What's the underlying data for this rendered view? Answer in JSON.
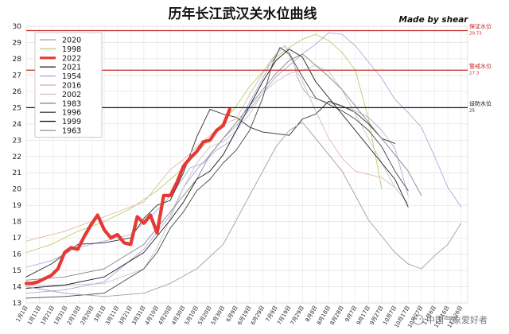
{
  "chart_data": {
    "type": "line",
    "title": "历年长江武汉关水位曲线",
    "credit": "Made  by shear",
    "watermark": "中国气象爱好者",
    "ylim": [
      13,
      30
    ],
    "yticks": [
      13,
      14,
      15,
      16,
      17,
      18,
      19,
      20,
      21,
      22,
      23,
      24,
      25,
      26,
      27,
      28,
      29,
      30
    ],
    "grid": true,
    "legend_position": "top-left",
    "x_tick_labels": [
      "1月1日",
      "1月11日",
      "1月21日",
      "1月31日",
      "2月10日",
      "2月20日",
      "3月1日",
      "3月11日",
      "3月21日",
      "3月31日",
      "4月10日",
      "4月20日",
      "4月30日",
      "5月10日",
      "5月20日",
      "5月30日",
      "6月9日",
      "6月19日",
      "6月29日",
      "7月9日",
      "7月19日",
      "7月29日",
      "8月8日",
      "8月18日",
      "8月28日",
      "9月7日",
      "9月17日",
      "9月27日",
      "10月7日",
      "10月17日",
      "10月27日",
      "11月6日",
      "11月16日",
      "11月26日"
    ],
    "x_tick_days": [
      1,
      11,
      21,
      31,
      41,
      51,
      60,
      70,
      80,
      90,
      100,
      110,
      120,
      130,
      140,
      150,
      160,
      170,
      180,
      190,
      200,
      210,
      220,
      230,
      240,
      250,
      260,
      270,
      280,
      290,
      300,
      310,
      320,
      330
    ],
    "reference_lines": [
      {
        "label": "保证水位",
        "value": 29.73,
        "value_label": "29.73",
        "color": "#c62828"
      },
      {
        "label": "警戒水位",
        "value": 27.3,
        "value_label": "27.3",
        "color": "#c62828"
      },
      {
        "label": "设防水位",
        "value": 25,
        "value_label": "25",
        "color": "#111111"
      }
    ],
    "series": [
      {
        "name": "2020",
        "color": "#9fb4d9",
        "width": 0.9,
        "x": [
          1,
          20,
          40,
          60,
          80,
          95,
          105,
          115,
          125,
          135,
          145,
          155,
          160,
          165,
          172,
          180,
          187,
          193,
          197,
          200,
          203,
          206,
          210,
          215,
          222,
          230,
          240,
          250,
          260,
          270,
          280,
          290
        ],
        "y": [
          15.2,
          15.6,
          16.4,
          16.8,
          17.2,
          18.3,
          19.1,
          20.1,
          21.3,
          21.6,
          22.4,
          22.9,
          23.6,
          24.6,
          25.6,
          26.8,
          27.9,
          28.6,
          28.8,
          28.4,
          27.9,
          26.9,
          26.2,
          25.7,
          25.5,
          25.3,
          25.1,
          24.8,
          24.4,
          23.6,
          22.5,
          19.6
        ]
      },
      {
        "name": "1998",
        "color": "#b7cf6e",
        "width": 0.9,
        "x": [
          1,
          20,
          40,
          60,
          80,
          100,
          120,
          140,
          150,
          160,
          170,
          180,
          190,
          200,
          210,
          220,
          230,
          240,
          250,
          260,
          270
        ],
        "y": [
          16.1,
          16.6,
          17.4,
          18.0,
          18.8,
          19.9,
          21.3,
          23.1,
          24.1,
          25.1,
          26.3,
          27.2,
          28.1,
          28.7,
          29.2,
          29.5,
          29.1,
          28.4,
          27.3,
          24.3,
          20.0
        ]
      },
      {
        "name": "2022",
        "color": "#e53935",
        "width": 4.2,
        "x": [
          1,
          5,
          10,
          15,
          20,
          25,
          30,
          35,
          40,
          45,
          50,
          55,
          60,
          65,
          70,
          75,
          80,
          85,
          90,
          95,
          100,
          105,
          110,
          115,
          120,
          125,
          130,
          135,
          140,
          145,
          150,
          155
        ],
        "y": [
          14.2,
          14.2,
          14.3,
          14.5,
          14.7,
          15.1,
          16.1,
          16.4,
          16.3,
          17.1,
          17.8,
          18.4,
          17.5,
          17.0,
          17.2,
          16.7,
          16.6,
          18.3,
          17.9,
          18.4,
          17.3,
          19.6,
          19.6,
          20.4,
          21.4,
          21.9,
          22.3,
          22.9,
          23.0,
          23.6,
          23.9,
          24.9
        ]
      },
      {
        "name": "2021",
        "color": "#2d2d2d",
        "width": 0.9,
        "x": [
          1,
          20,
          40,
          60,
          80,
          90,
          100,
          110,
          120,
          130,
          140,
          150,
          160,
          170,
          180,
          190,
          200,
          210,
          220,
          230,
          240,
          250,
          260,
          270,
          280
        ],
        "y": [
          14.6,
          15.4,
          16.6,
          16.7,
          17.0,
          18.2,
          19.0,
          19.3,
          21.0,
          23.2,
          24.9,
          24.6,
          24.4,
          23.8,
          23.5,
          23.4,
          23.3,
          24.3,
          24.6,
          25.4,
          25.1,
          24.7,
          24.0,
          23.1,
          22.8
        ]
      },
      {
        "name": "1954",
        "color": "#b3a6e0",
        "width": 0.9,
        "x": [
          1,
          30,
          60,
          90,
          110,
          120,
          130,
          140,
          150,
          160,
          170,
          180,
          190,
          200,
          210,
          220,
          230,
          240,
          250,
          260,
          270,
          280,
          290,
          300,
          310,
          320,
          330
        ],
        "y": [
          13.6,
          13.8,
          14.3,
          16.3,
          18.4,
          20.1,
          21.2,
          22.1,
          23.1,
          23.9,
          24.9,
          25.9,
          26.9,
          27.6,
          28.3,
          28.9,
          29.6,
          29.5,
          28.8,
          27.8,
          26.8,
          25.5,
          24.7,
          23.8,
          22.0,
          20.1,
          18.9
        ]
      },
      {
        "name": "2016",
        "color": "#e3b8a8",
        "width": 0.9,
        "x": [
          1,
          30,
          60,
          90,
          100,
          110,
          120,
          130,
          140,
          150,
          160,
          170,
          180,
          185,
          190,
          195,
          200,
          210,
          220,
          230,
          240,
          250,
          260,
          270,
          280
        ],
        "y": [
          16.8,
          17.4,
          18.3,
          19.2,
          20.2,
          21.2,
          21.8,
          22.6,
          23.3,
          24.0,
          24.3,
          25.8,
          27.1,
          27.8,
          28.3,
          28.6,
          28.2,
          26.6,
          24.8,
          23.1,
          21.9,
          21.1,
          20.9,
          20.7,
          20.1
        ]
      },
      {
        "name": "2002",
        "color": "#c7c7c7",
        "width": 0.9,
        "x": [
          1,
          30,
          60,
          90,
          100,
          110,
          120,
          130,
          140,
          150,
          160,
          170,
          180,
          190,
          200,
          210,
          220,
          230,
          240,
          250,
          260,
          270,
          280,
          290
        ],
        "y": [
          14.1,
          14.1,
          14.2,
          15.1,
          16.4,
          18.2,
          20.1,
          21.6,
          22.6,
          22.9,
          23.6,
          24.6,
          25.9,
          26.6,
          27.1,
          27.3,
          27.6,
          27.2,
          26.1,
          24.6,
          23.1,
          21.6,
          20.1,
          19.1
        ]
      },
      {
        "name": "1983",
        "color": "#888888",
        "width": 0.9,
        "x": [
          1,
          30,
          60,
          90,
          100,
          110,
          120,
          130,
          140,
          150,
          160,
          170,
          180,
          190,
          200,
          210,
          220,
          230,
          240,
          250,
          260,
          270,
          280,
          290,
          300
        ],
        "y": [
          14.4,
          14.6,
          15.1,
          16.6,
          17.6,
          18.6,
          19.6,
          20.6,
          22.1,
          23.1,
          24.1,
          25.1,
          26.1,
          27.1,
          27.9,
          28.3,
          27.6,
          26.9,
          26.1,
          25.1,
          24.1,
          23.1,
          22.1,
          21.1,
          19.6
        ]
      },
      {
        "name": "1996",
        "color": "#444444",
        "width": 0.9,
        "x": [
          1,
          30,
          60,
          90,
          100,
          110,
          120,
          130,
          140,
          150,
          160,
          170,
          180,
          187,
          193,
          200,
          210,
          220,
          230,
          240,
          250,
          260,
          270,
          280,
          290
        ],
        "y": [
          13.3,
          13.4,
          13.6,
          15.1,
          16.1,
          17.6,
          18.6,
          19.9,
          20.6,
          21.6,
          22.4,
          23.6,
          25.6,
          27.6,
          28.7,
          28.3,
          26.9,
          25.6,
          25.2,
          24.8,
          24.3,
          23.6,
          22.6,
          21.1,
          19.9
        ]
      },
      {
        "name": "1999",
        "color": "#1a1a1a",
        "width": 0.9,
        "x": [
          1,
          30,
          60,
          90,
          100,
          110,
          120,
          130,
          140,
          150,
          160,
          170,
          180,
          190,
          200,
          210,
          220,
          230,
          240,
          250,
          260,
          270,
          280,
          290
        ],
        "y": [
          13.9,
          14.1,
          14.6,
          16.1,
          17.1,
          18.1,
          19.2,
          20.6,
          21.1,
          22.1,
          23.6,
          25.1,
          26.6,
          27.9,
          28.6,
          28.1,
          26.6,
          25.6,
          24.6,
          23.6,
          22.6,
          21.6,
          20.6,
          18.9
        ]
      },
      {
        "name": "1963",
        "color": "#a0a0a0",
        "width": 0.9,
        "x": [
          1,
          30,
          60,
          90,
          110,
          130,
          150,
          160,
          170,
          180,
          190,
          200,
          210,
          220,
          230,
          240,
          250,
          260,
          270,
          280,
          290,
          300,
          310,
          320,
          330
        ],
        "y": [
          14.0,
          13.6,
          13.4,
          13.6,
          14.2,
          15.1,
          16.6,
          18.1,
          19.6,
          21.1,
          22.6,
          23.6,
          24.1,
          23.1,
          22.1,
          21.1,
          19.6,
          18.1,
          17.1,
          16.1,
          15.4,
          15.1,
          15.9,
          16.6,
          17.9
        ]
      }
    ]
  }
}
